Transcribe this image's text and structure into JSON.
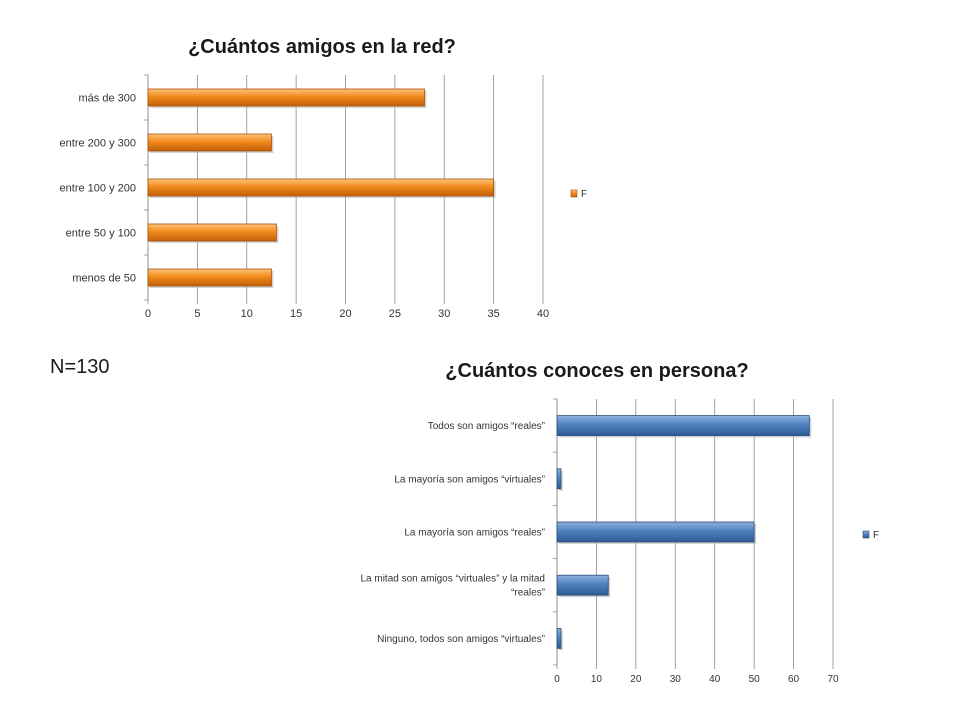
{
  "page_note": "N=130",
  "chart_data": [
    {
      "type": "bar",
      "orientation": "horizontal",
      "title": "¿Cuántos amigos en la red?",
      "categories": [
        "más de 300",
        "entre 200 y 300",
        "entre 100 y 200",
        "entre 50 y 100",
        "menos de 50"
      ],
      "series": [
        {
          "name": "F",
          "values": [
            28,
            12.5,
            35,
            13,
            12.5
          ],
          "color": "#f28a1c"
        }
      ],
      "xlim": [
        0,
        40
      ],
      "xticks": [
        "0",
        "5",
        "10",
        "15",
        "20",
        "25",
        "30",
        "35",
        "40"
      ],
      "grid": true,
      "legend": "right"
    },
    {
      "type": "bar",
      "orientation": "horizontal",
      "title": "¿Cuántos conoces en persona?",
      "categories": [
        [
          "Todos son amigos “reales”"
        ],
        [
          "La mayoría son amigos “virtuales”"
        ],
        [
          "La mayoría son amigos “reales”"
        ],
        [
          "La mitad son amigos “virtuales” y la mitad",
          "“reales”"
        ],
        [
          "Ninguno, todos son amigos “virtuales”"
        ]
      ],
      "series": [
        {
          "name": "F",
          "values": [
            64,
            1,
            50,
            13,
            1
          ],
          "color": "#4f81bd"
        }
      ],
      "xlim": [
        0,
        70
      ],
      "xticks": [
        "0",
        "10",
        "20",
        "30",
        "40",
        "50",
        "60",
        "70"
      ],
      "grid": true,
      "legend": "right"
    }
  ]
}
